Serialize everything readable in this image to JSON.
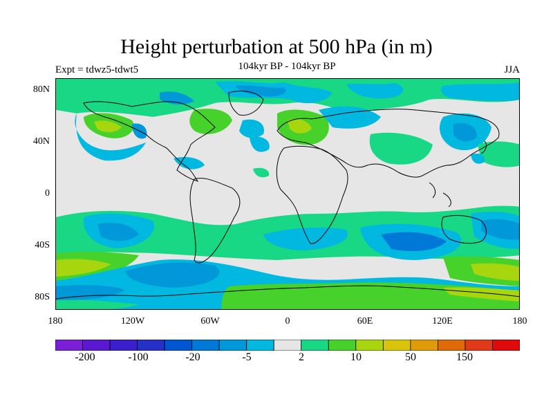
{
  "title": "Height perturbation at 500 hPa (in m)",
  "subtitle": "104kyr BP - 104kyr BP",
  "experiment": "Expt = tdwz5-tdwt5",
  "season": "JJA",
  "lat_labels": [
    "80N",
    "40N",
    "0",
    "40S",
    "80S"
  ],
  "lon_labels": [
    "180",
    "120W",
    "60W",
    "0",
    "60E",
    "120E",
    "180"
  ],
  "colorbar": {
    "colors": [
      "#7a1fd8",
      "#5a18d0",
      "#3b1fcf",
      "#2430c8",
      "#0055d0",
      "#0078d8",
      "#0098d8",
      "#00b8e0",
      "#e6e6e6",
      "#18d886",
      "#46d22a",
      "#a8d60e",
      "#d8c40a",
      "#e09a0a",
      "#de6a0a",
      "#e03a18",
      "#e00a0a"
    ],
    "labels": [
      "-200",
      "-100",
      "-20",
      "-5",
      "2",
      "10",
      "50",
      "150"
    ]
  },
  "fill_colors": {
    "neutral": "#e6e6e6",
    "light_blue": "#00b8e0",
    "blue": "#0098d8",
    "mid_blue": "#0078d8",
    "teal": "#18d886",
    "green": "#46d22a",
    "lime": "#a8d60e"
  }
}
